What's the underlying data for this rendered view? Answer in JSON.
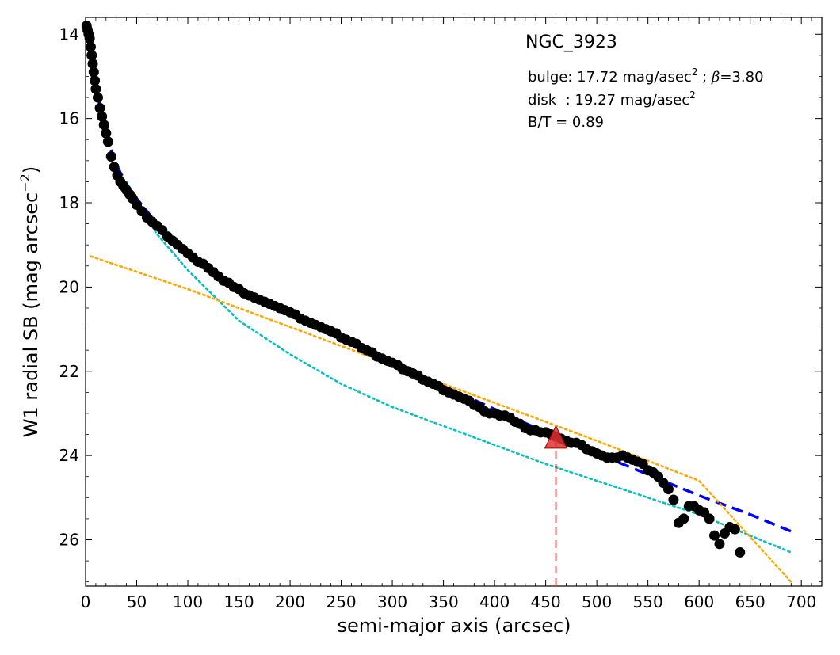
{
  "chart_data": {
    "type": "scatter",
    "title": "NGC_3923",
    "xlabel": "semi-major axis (arcsec)",
    "ylabel": "W1 radial SB (mag arcsec",
    "ylabel_sup": "−2",
    "ylabel_tail": ")",
    "xlim": [
      0,
      720
    ],
    "ylim": [
      27.1,
      13.6
    ],
    "y_inverted": true,
    "xticks": [
      0,
      50,
      100,
      150,
      200,
      250,
      300,
      350,
      400,
      450,
      500,
      550,
      600,
      650,
      700
    ],
    "yticks": [
      14,
      16,
      18,
      20,
      22,
      24,
      26
    ],
    "annotations": {
      "bulge_prefix": "bulge: 17.72 mag/asec",
      "bulge_sup": "2",
      "bulge_mid": " ; ",
      "bulge_beta": "β",
      "bulge_suffix": "=3.80",
      "disk_prefix": "disk  : 19.27 mag/asec",
      "disk_sup": "2",
      "bt": "B/T = 0.89"
    },
    "marker": {
      "x": 460,
      "y": 23.6
    },
    "colors": {
      "data_points": "#000000",
      "total_fit": "#0000ff",
      "bulge": "#00c0c0",
      "disk": "#ffa500",
      "marker": "#e03030"
    },
    "series": [
      {
        "style": "points",
        "x": [
          1,
          2,
          3,
          4,
          5,
          6,
          7,
          8,
          9,
          10,
          12,
          14,
          16,
          18,
          20,
          22,
          25,
          28,
          31,
          34,
          37,
          40,
          43,
          46,
          50,
          55,
          60,
          65,
          70,
          75,
          80,
          85,
          90,
          95,
          100,
          105,
          110,
          115,
          120,
          125,
          130,
          135,
          140,
          145,
          150,
          155,
          160,
          165,
          170,
          175,
          180,
          185,
          190,
          195,
          200,
          205,
          210,
          215,
          220,
          225,
          230,
          235,
          240,
          245,
          250,
          255,
          260,
          265,
          270,
          275,
          280,
          285,
          290,
          295,
          300,
          305,
          310,
          315,
          320,
          325,
          330,
          335,
          340,
          345,
          350,
          355,
          360,
          365,
          370,
          375,
          380,
          385,
          390,
          395,
          400,
          405,
          410,
          415,
          420,
          425,
          430,
          435,
          440,
          445,
          450,
          455,
          460,
          465,
          470,
          475,
          480,
          485,
          490,
          495,
          500,
          505,
          510,
          515,
          520,
          525,
          530,
          535,
          540,
          545,
          550,
          555,
          560,
          565,
          570,
          575,
          580,
          585,
          590,
          595,
          600,
          605,
          610,
          615,
          620,
          625,
          630,
          635,
          640
        ],
        "y": [
          13.8,
          13.9,
          14.0,
          14.1,
          14.3,
          14.5,
          14.7,
          14.9,
          15.1,
          15.3,
          15.5,
          15.75,
          15.95,
          16.15,
          16.35,
          16.55,
          16.9,
          17.15,
          17.35,
          17.5,
          17.6,
          17.7,
          17.8,
          17.9,
          18.05,
          18.2,
          18.35,
          18.45,
          18.55,
          18.65,
          18.8,
          18.9,
          19.0,
          19.1,
          19.2,
          19.3,
          19.4,
          19.45,
          19.55,
          19.65,
          19.75,
          19.85,
          19.9,
          20.0,
          20.05,
          20.15,
          20.2,
          20.25,
          20.3,
          20.35,
          20.4,
          20.45,
          20.5,
          20.55,
          20.6,
          20.65,
          20.75,
          20.8,
          20.85,
          20.9,
          20.95,
          21.0,
          21.05,
          21.1,
          21.2,
          21.25,
          21.3,
          21.35,
          21.45,
          21.5,
          21.55,
          21.65,
          21.7,
          21.75,
          21.8,
          21.85,
          21.95,
          22.0,
          22.05,
          22.1,
          22.2,
          22.25,
          22.3,
          22.35,
          22.45,
          22.5,
          22.55,
          22.6,
          22.65,
          22.7,
          22.8,
          22.85,
          22.95,
          23.0,
          23.0,
          23.05,
          23.05,
          23.1,
          23.2,
          23.25,
          23.35,
          23.4,
          23.4,
          23.45,
          23.45,
          23.5,
          23.55,
          23.6,
          23.65,
          23.7,
          23.7,
          23.75,
          23.85,
          23.9,
          23.95,
          24.0,
          24.05,
          24.05,
          24.05,
          24.0,
          24.05,
          24.1,
          24.15,
          24.2,
          24.35,
          24.4,
          24.5,
          24.65,
          24.8,
          25.05,
          25.6,
          25.5,
          25.2,
          25.2,
          25.3,
          25.35,
          25.5,
          25.9,
          26.1,
          25.85,
          25.7,
          25.75,
          26.3
        ]
      },
      {
        "name": "",
        "style": "dashed",
        "x": [
          2,
          10,
          20,
          30,
          40,
          50,
          70,
          100,
          150,
          200,
          250,
          300,
          350,
          400,
          450,
          500,
          550,
          600,
          650,
          690
        ],
        "y": [
          13.9,
          15.2,
          16.4,
          17.1,
          17.55,
          17.9,
          18.5,
          19.15,
          20.0,
          20.6,
          21.2,
          21.75,
          22.35,
          22.9,
          23.45,
          23.95,
          24.45,
          24.95,
          25.4,
          25.8
        ]
      },
      {
        "name": "",
        "style": "dotted",
        "x": [
          40,
          50,
          70,
          100,
          150,
          200,
          250,
          300,
          350,
          400,
          450,
          500,
          550,
          600,
          650,
          690
        ],
        "y": [
          17.5,
          18.0,
          18.75,
          19.6,
          20.8,
          21.6,
          22.3,
          22.85,
          23.3,
          23.75,
          24.2,
          24.6,
          25.0,
          25.4,
          25.9,
          26.3
        ]
      },
      {
        "name": "",
        "style": "dotted",
        "x": [
          5,
          100,
          200,
          300,
          400,
          500,
          600,
          690
        ],
        "y": [
          19.27,
          20.05,
          20.95,
          21.85,
          22.75,
          23.65,
          24.6,
          27.0
        ]
      }
    ]
  }
}
